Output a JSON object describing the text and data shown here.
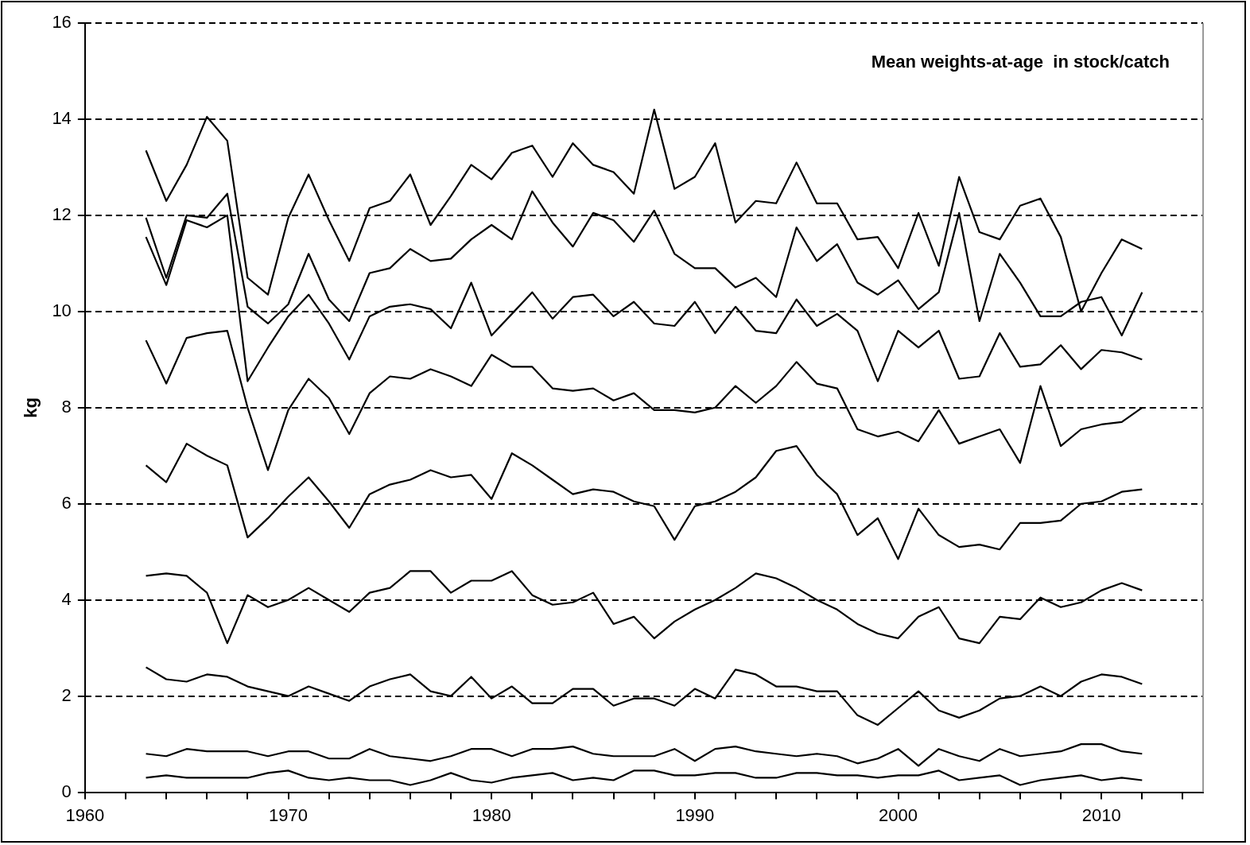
{
  "chart_data": {
    "type": "line",
    "title": "Mean weights-at-age  in stock/catch",
    "ylabel": "kg",
    "x": [
      1963,
      1964,
      1965,
      1966,
      1967,
      1968,
      1969,
      1970,
      1971,
      1972,
      1973,
      1974,
      1975,
      1976,
      1977,
      1978,
      1979,
      1980,
      1981,
      1982,
      1983,
      1984,
      1985,
      1986,
      1987,
      1988,
      1989,
      1990,
      1991,
      1992,
      1993,
      1994,
      1995,
      1996,
      1997,
      1998,
      1999,
      2000,
      2001,
      2002,
      2003,
      2004,
      2005,
      2006,
      2007,
      2008,
      2009,
      2010,
      2011,
      2012
    ],
    "series": [
      {
        "color": "#000000",
        "values": [
          13.35,
          12.3,
          13.05,
          14.05,
          13.55,
          10.7,
          10.35,
          11.95,
          12.85,
          11.9,
          11.05,
          12.15,
          12.3,
          12.85,
          11.8,
          12.4,
          13.05,
          12.75,
          13.3,
          13.45,
          12.8,
          13.5,
          13.05,
          12.9,
          12.45,
          14.2,
          12.55,
          12.8,
          13.5,
          11.85,
          12.3,
          12.25,
          13.1,
          12.25,
          12.25,
          11.5,
          11.55,
          10.9,
          12.05,
          10.95,
          12.8,
          11.65,
          11.5,
          12.2,
          12.35,
          11.55,
          10.0,
          10.8,
          11.5,
          11.3
        ]
      },
      {
        "color": "#000000",
        "values": [
          11.95,
          10.7,
          12.0,
          11.95,
          12.45,
          10.1,
          9.75,
          10.15,
          11.2,
          10.25,
          9.8,
          10.8,
          10.9,
          11.3,
          11.05,
          11.1,
          11.5,
          11.8,
          11.5,
          12.5,
          11.85,
          11.35,
          12.05,
          11.9,
          11.45,
          12.1,
          11.2,
          10.9,
          10.9,
          10.5,
          10.7,
          10.3,
          11.75,
          11.05,
          11.4,
          10.6,
          10.35,
          10.65,
          10.05,
          10.4,
          12.05,
          9.8,
          11.2,
          10.6,
          9.9,
          9.9,
          10.2,
          10.3,
          9.5,
          10.4
        ]
      },
      {
        "color": "#000000",
        "values": [
          11.55,
          10.55,
          11.9,
          11.75,
          12.0,
          8.55,
          9.25,
          9.9,
          10.35,
          9.75,
          9.0,
          9.9,
          10.1,
          10.15,
          10.05,
          9.65,
          10.6,
          9.5,
          9.95,
          10.4,
          9.85,
          10.3,
          10.35,
          9.9,
          10.2,
          9.75,
          9.7,
          10.2,
          9.55,
          10.1,
          9.6,
          9.55,
          10.25,
          9.7,
          9.95,
          9.6,
          8.55,
          9.6,
          9.25,
          9.6,
          8.6,
          8.65,
          9.55,
          8.85,
          8.9,
          9.3,
          8.8,
          9.2,
          9.15,
          9.0
        ]
      },
      {
        "color": "#000000",
        "values": [
          9.4,
          8.5,
          9.45,
          9.55,
          9.6,
          8.0,
          6.7,
          7.95,
          8.6,
          8.2,
          7.45,
          8.3,
          8.65,
          8.6,
          8.8,
          8.65,
          8.45,
          9.1,
          8.85,
          8.85,
          8.4,
          8.35,
          8.4,
          8.15,
          8.3,
          7.95,
          7.95,
          7.9,
          8.0,
          8.45,
          8.1,
          8.45,
          8.95,
          8.5,
          8.4,
          7.55,
          7.4,
          7.5,
          7.3,
          7.95,
          7.25,
          7.4,
          7.55,
          6.85,
          8.45,
          7.2,
          7.55,
          7.65,
          7.7,
          8.0
        ]
      },
      {
        "color": "#000000",
        "values": [
          6.8,
          6.45,
          7.25,
          7.0,
          6.8,
          5.3,
          5.7,
          6.15,
          6.55,
          6.05,
          5.5,
          6.2,
          6.4,
          6.5,
          6.7,
          6.55,
          6.6,
          6.1,
          7.05,
          6.8,
          6.5,
          6.2,
          6.3,
          6.25,
          6.05,
          5.95,
          5.25,
          5.95,
          6.05,
          6.25,
          6.55,
          7.1,
          7.2,
          6.6,
          6.2,
          5.35,
          5.7,
          4.85,
          5.9,
          5.35,
          5.1,
          5.15,
          5.05,
          5.6,
          5.6,
          5.65,
          6.0,
          6.05,
          6.25,
          6.3
        ]
      },
      {
        "color": "#000000",
        "values": [
          4.5,
          4.55,
          4.5,
          4.15,
          3.1,
          4.1,
          3.85,
          4.0,
          4.25,
          4.0,
          3.75,
          4.15,
          4.25,
          4.6,
          4.6,
          4.15,
          4.4,
          4.4,
          4.6,
          4.1,
          3.9,
          3.95,
          4.15,
          3.5,
          3.65,
          3.2,
          3.55,
          3.8,
          4.0,
          4.25,
          4.55,
          4.45,
          4.25,
          4.0,
          3.8,
          3.5,
          3.3,
          3.2,
          3.65,
          3.85,
          3.2,
          3.1,
          3.65,
          3.6,
          4.05,
          3.85,
          3.95,
          4.2,
          4.35,
          4.2
        ]
      },
      {
        "color": "#000000",
        "values": [
          2.6,
          2.35,
          2.3,
          2.45,
          2.4,
          2.2,
          2.1,
          2.0,
          2.2,
          2.05,
          1.9,
          2.2,
          2.35,
          2.45,
          2.1,
          2.0,
          2.4,
          1.95,
          2.2,
          1.85,
          1.85,
          2.15,
          2.15,
          1.8,
          1.95,
          1.95,
          1.8,
          2.15,
          1.95,
          2.55,
          2.45,
          2.2,
          2.2,
          2.1,
          2.1,
          1.6,
          1.4,
          1.75,
          2.1,
          1.7,
          1.55,
          1.7,
          1.95,
          2.0,
          2.2,
          2.0,
          2.3,
          2.45,
          2.4,
          2.25
        ]
      },
      {
        "color": "#000000",
        "values": [
          0.8,
          0.75,
          0.9,
          0.85,
          0.85,
          0.85,
          0.75,
          0.85,
          0.85,
          0.7,
          0.7,
          0.9,
          0.75,
          0.7,
          0.65,
          0.75,
          0.9,
          0.9,
          0.75,
          0.9,
          0.9,
          0.95,
          0.8,
          0.75,
          0.75,
          0.75,
          0.9,
          0.65,
          0.9,
          0.95,
          0.85,
          0.8,
          0.75,
          0.8,
          0.75,
          0.6,
          0.7,
          0.9,
          0.55,
          0.9,
          0.75,
          0.65,
          0.9,
          0.75,
          0.8,
          0.85,
          1.0,
          1.0,
          0.85,
          0.8
        ]
      },
      {
        "color": "#000000",
        "values": [
          0.3,
          0.35,
          0.3,
          0.3,
          0.3,
          0.3,
          0.4,
          0.45,
          0.3,
          0.25,
          0.3,
          0.25,
          0.25,
          0.15,
          0.25,
          0.4,
          0.25,
          0.2,
          0.3,
          0.35,
          0.4,
          0.25,
          0.3,
          0.25,
          0.45,
          0.45,
          0.35,
          0.35,
          0.4,
          0.4,
          0.3,
          0.3,
          0.4,
          0.4,
          0.35,
          0.35,
          0.3,
          0.35,
          0.35,
          0.45,
          0.25,
          0.3,
          0.35,
          0.15,
          0.25,
          0.3,
          0.35,
          0.25,
          0.3,
          0.25
        ]
      }
    ],
    "xlim": [
      1960,
      2015
    ],
    "xticks": [
      1960,
      {
        "value": 1962,
        "label": null
      },
      {
        "value": 1964,
        "label": null
      },
      {
        "value": 1966,
        "label": null
      },
      {
        "value": 1968,
        "label": null
      },
      1970,
      {
        "value": 1972,
        "label": null
      },
      {
        "value": 1974,
        "label": null
      },
      {
        "value": 1976,
        "label": null
      },
      {
        "value": 1978,
        "label": null
      },
      1980,
      {
        "value": 1982,
        "label": null
      },
      {
        "value": 1984,
        "label": null
      },
      {
        "value": 1986,
        "label": null
      },
      {
        "value": 1988,
        "label": null
      },
      1990,
      {
        "value": 1992,
        "label": null
      },
      {
        "value": 1994,
        "label": null
      },
      {
        "value": 1996,
        "label": null
      },
      {
        "value": 1998,
        "label": null
      },
      2000,
      {
        "value": 2002,
        "label": null
      },
      {
        "value": 2004,
        "label": null
      },
      {
        "value": 2006,
        "label": null
      },
      {
        "value": 2008,
        "label": null
      },
      2010,
      {
        "value": 2012,
        "label": null
      },
      {
        "value": 2014,
        "label": null
      }
    ],
    "ylim": [
      0,
      16
    ],
    "yticks": [
      0,
      2,
      4,
      6,
      8,
      10,
      12,
      14,
      16
    ],
    "grid": "y",
    "legend": false,
    "marker": "none",
    "line_style": "solid"
  }
}
